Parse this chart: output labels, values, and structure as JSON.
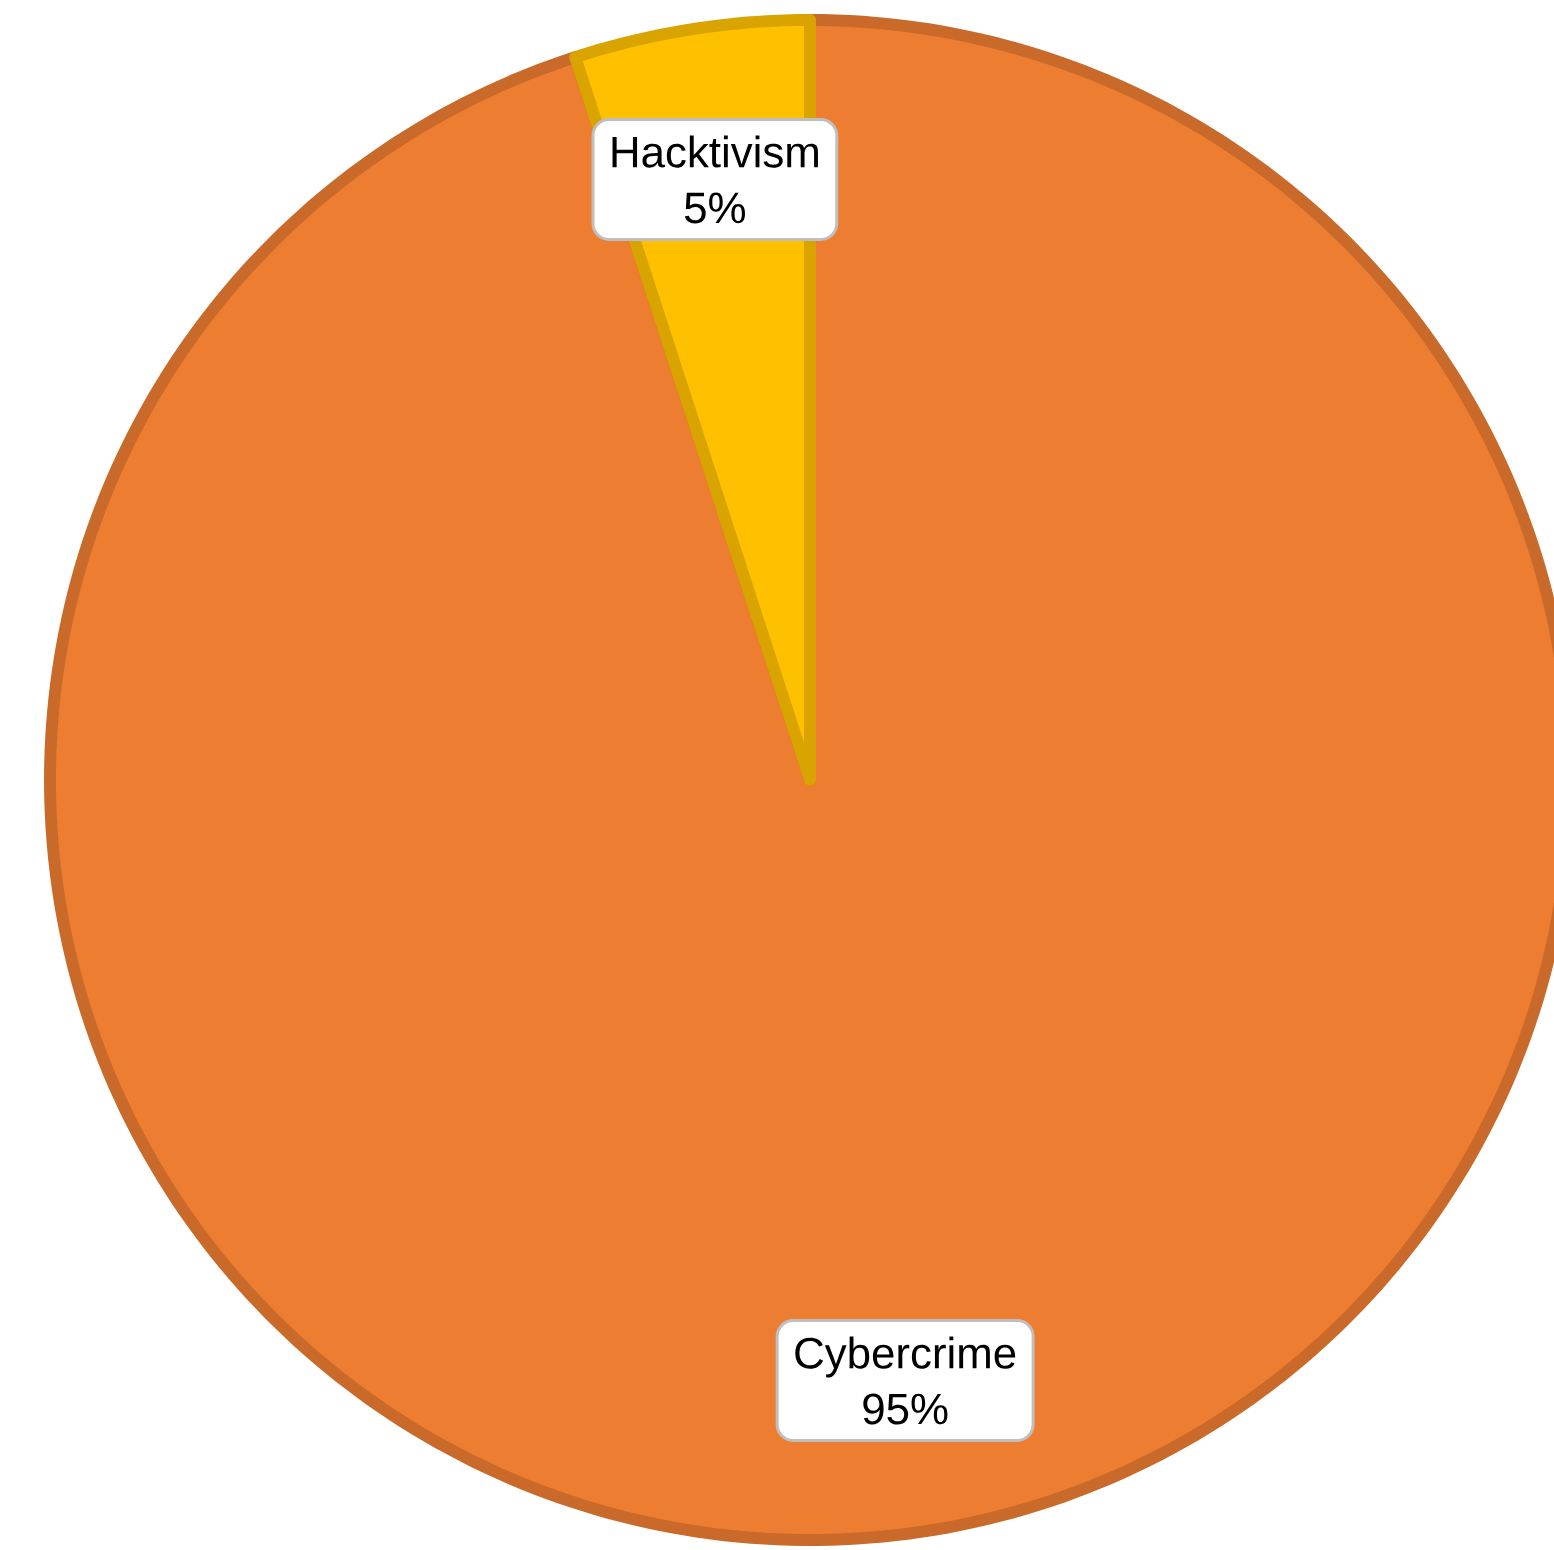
{
  "chart_data": {
    "type": "pie",
    "categories": [
      "Cybercrime",
      "Hacktivism"
    ],
    "values": [
      95,
      5
    ],
    "value_labels": [
      "95%",
      "5%"
    ],
    "colors": [
      "#ed7d31",
      "#ffc000"
    ]
  }
}
